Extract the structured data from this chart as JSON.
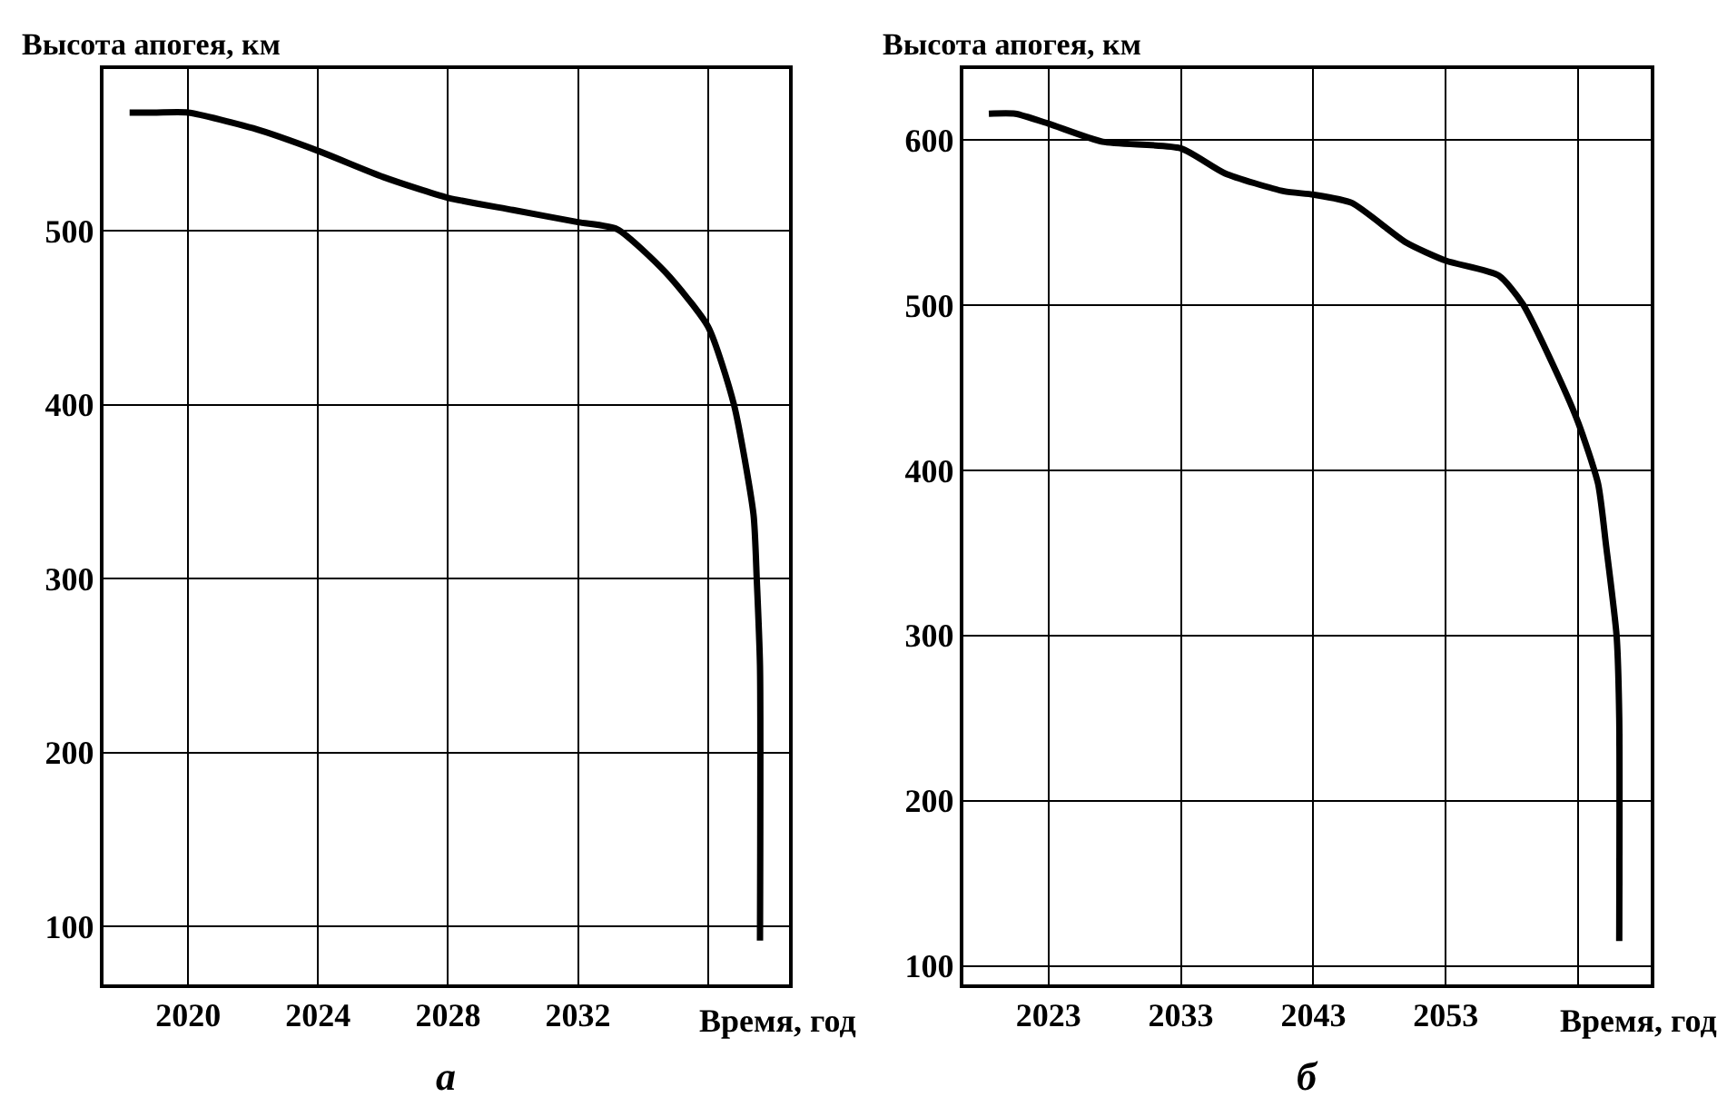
{
  "chart_data": [
    {
      "type": "line",
      "xlabel": "Время, год",
      "ylabel": "Высота апогея, км",
      "annotations": [
        "а"
      ],
      "x": [
        2018.2,
        2019,
        2020,
        2022,
        2024,
        2026,
        2028,
        2030,
        2032,
        2033.2,
        2034.7,
        2036,
        2036.8,
        2037.4,
        2037.5,
        2037.6,
        2037.6
      ],
      "series": [
        {
          "color": "#000000",
          "values": [
            568,
            568,
            568,
            559,
            546,
            531,
            519,
            512,
            505,
            501,
            476,
            445,
            400,
            337,
            300,
            250,
            92
          ]
        }
      ],
      "xlim": [
        2017.4,
        2038.5
      ],
      "xticks": [
        2020,
        2024,
        2028,
        2032,
        {
          "value": 2036,
          "label": null
        }
      ],
      "ylim": [
        67,
        593
      ],
      "yticks": [
        100,
        200,
        300,
        400,
        500
      ],
      "grid": true,
      "line_style": "solid",
      "marker": "none"
    },
    {
      "type": "line",
      "xlabel": "Время, год",
      "ylabel": "Высота апогея, км",
      "annotations": [
        "б"
      ],
      "x": [
        2018.5,
        2020.5,
        2023,
        2027.1,
        2033,
        2036.3,
        2040.8,
        2043,
        2045.9,
        2050,
        2053,
        2057,
        2058.8,
        2061.5,
        2063,
        2064.5,
        2065.1,
        2065.9,
        2066.1,
        2066.1
      ],
      "series": [
        {
          "color": "#000000",
          "values": [
            616,
            616,
            610,
            599,
            595,
            580,
            569,
            567,
            562,
            538,
            527,
            518,
            501,
            457,
            429,
            392,
            355,
            300,
            250,
            115
          ]
        }
      ],
      "xlim": [
        2016.6,
        2068.5
      ],
      "xticks": [
        2023,
        2033,
        2043,
        2053,
        {
          "value": 2063,
          "label": null
        }
      ],
      "ylim": [
        89,
        643
      ],
      "yticks": [
        100,
        200,
        300,
        400,
        500,
        600
      ],
      "grid": true,
      "line_style": "solid",
      "marker": "none"
    }
  ]
}
